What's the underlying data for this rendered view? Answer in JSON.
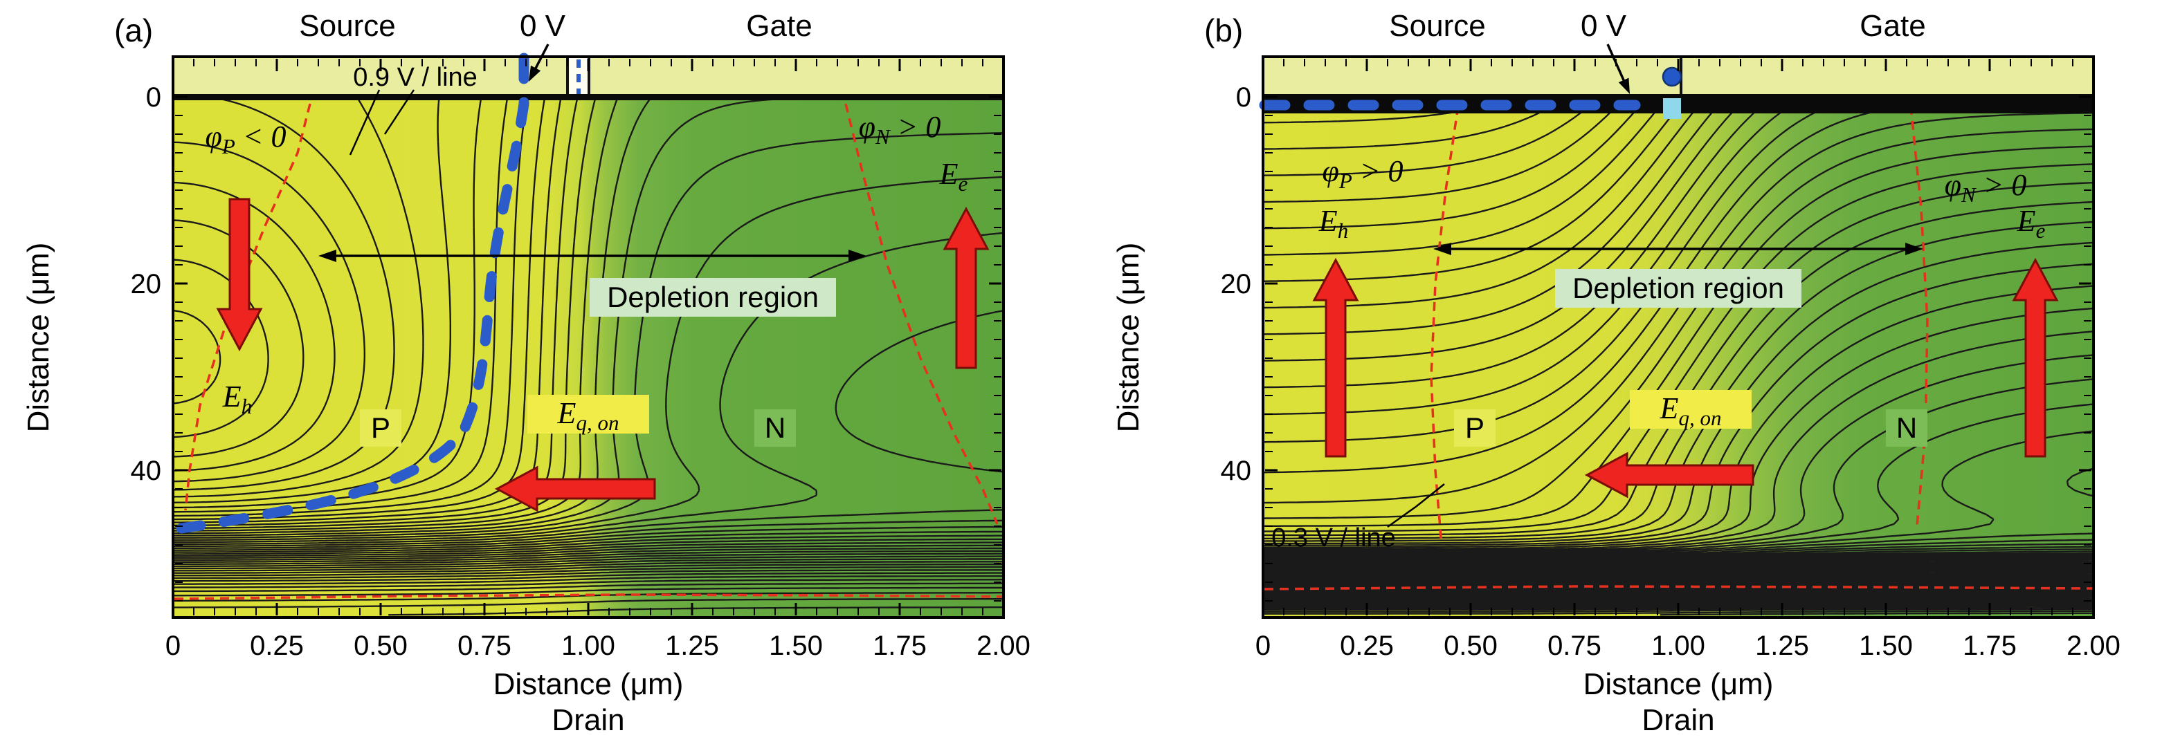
{
  "figure_type": "Semiconductor device 2D electrostatic potential contour figure (two panels)",
  "colors": {
    "p_region_yellow": "#dbe13b",
    "n_region_green": "#5fa53d",
    "contact_strip_yellow": "#e8ed9f",
    "contour_line_black": "#1a1a1a",
    "zero_volt_blue": "#2b5cc9",
    "depletion_boundary_red": "#e8301e",
    "field_arrow_red": "#ee2420",
    "depletion_label_bg": "#cfe9c8",
    "eq_label_bg": "#f2ec49",
    "p_label_bg": "#e6ea55",
    "n_label_bg": "#7cbd58"
  },
  "panels": [
    {
      "letter": "(a)",
      "top": {
        "source": "Source",
        "bias": "0 V",
        "gate": "Gate"
      },
      "contour_note": "0.9 V / line",
      "phi_left": {
        "sym": "φ",
        "sub": "P",
        "rel": " < 0"
      },
      "phi_right": {
        "sym": "φ",
        "sub": "N",
        "rel": " > 0"
      },
      "e_left": {
        "sym": "E",
        "sub": "h"
      },
      "e_right": {
        "sym": "E",
        "sub": "e"
      },
      "e_mid": {
        "sym": "E",
        "sub": "q, on"
      },
      "depletion": "Depletion region",
      "p_region": "P",
      "n_region": "N",
      "x_axis": {
        "title": "Distance (μm)",
        "ticks": [
          "0",
          "0.25",
          "0.50",
          "0.75",
          "1.00",
          "1.25",
          "1.50",
          "1.75",
          "2.00"
        ],
        "bottom_label": "Drain"
      },
      "y_axis": {
        "title": "Distance (μm)",
        "ticks": [
          "0",
          "20",
          "40"
        ]
      }
    },
    {
      "letter": "(b)",
      "top": {
        "source": "Source",
        "bias": "0 V",
        "gate": "Gate"
      },
      "contour_note": "0.3 V / line",
      "phi_left": {
        "sym": "φ",
        "sub": "P",
        "rel": " > 0"
      },
      "phi_right": {
        "sym": "φ",
        "sub": "N",
        "rel": " > 0"
      },
      "e_left": {
        "sym": "E",
        "sub": "h"
      },
      "e_right": {
        "sym": "E",
        "sub": "e"
      },
      "e_mid": {
        "sym": "E",
        "sub": "q, on"
      },
      "depletion": "Depletion region",
      "p_region": "P",
      "n_region": "N",
      "x_axis": {
        "title": "Distance (μm)",
        "ticks": [
          "0",
          "0.25",
          "0.50",
          "0.75",
          "1.00",
          "1.25",
          "1.50",
          "1.75",
          "2.00"
        ],
        "bottom_label": "Drain"
      },
      "y_axis": {
        "title": "Distance (μm)",
        "ticks": [
          "0",
          "20",
          "40"
        ]
      }
    }
  ],
  "chart_data": [
    {
      "type": "heatmap",
      "subtype": "filled 2D potential contour map of vertical P/N device cross-section",
      "panel": "(a)",
      "xlabel": "Distance (μm)",
      "ylabel": "Distance (μm)",
      "xlim": [
        0,
        2.0
      ],
      "ylim": [
        0,
        56
      ],
      "x_ticks": [
        0,
        0.25,
        0.5,
        0.75,
        1.0,
        1.25,
        1.5,
        1.75,
        2.0
      ],
      "y_ticks": [
        0,
        20,
        40
      ],
      "contour_interval_V": 0.9,
      "electrodes": {
        "top_left": "Source (0 V)",
        "top_right": "Gate",
        "bottom": "Drain"
      },
      "regions": [
        {
          "name": "P",
          "fill": "yellow",
          "potential_sign": "phiP < 0",
          "approx_x_range_um": [
            0,
            0.95
          ]
        },
        {
          "name": "N",
          "fill": "green",
          "potential_sign": "phiN > 0",
          "approx_x_range_um": [
            0.95,
            2.0
          ]
        }
      ],
      "overlays": [
        {
          "name": "0 V equipotential",
          "style": "thick blue dashed",
          "path_um": [
            [
              0.84,
              0
            ],
            [
              0.75,
              24
            ],
            [
              0.72,
              35
            ],
            [
              0.45,
              43.5
            ],
            [
              0.02,
              46.5
            ]
          ]
        },
        {
          "name": "depletion boundary left",
          "style": "thin red dashed",
          "path_um": [
            [
              0.33,
              0
            ],
            [
              0.05,
              42
            ]
          ]
        },
        {
          "name": "depletion boundary right",
          "style": "thin red dashed",
          "path_um": [
            [
              1.62,
              0
            ],
            [
              1.98,
              46
            ]
          ]
        },
        {
          "name": "depletion boundary bottom",
          "style": "thin red dashed",
          "depth_um": 53.5
        },
        {
          "name": "Eh hole field arrow",
          "direction": "down",
          "at_um": [
            0.16,
            19
          ]
        },
        {
          "name": "Ee electron field arrow",
          "direction": "up",
          "at_um": [
            1.91,
            20
          ]
        },
        {
          "name": "Eq,on field arrow",
          "direction": "left",
          "at_um": [
            0.97,
            42
          ]
        },
        {
          "name": "Depletion region span",
          "span_um": [
            0.35,
            1.67
          ],
          "depth_um": 17
        }
      ]
    },
    {
      "type": "heatmap",
      "subtype": "filled 2D potential contour map of vertical P/N device cross-section",
      "panel": "(b)",
      "xlabel": "Distance (μm)",
      "ylabel": "Distance (μm)",
      "xlim": [
        0,
        2.0
      ],
      "ylim": [
        0,
        56
      ],
      "x_ticks": [
        0,
        0.25,
        0.5,
        0.75,
        1.0,
        1.25,
        1.5,
        1.75,
        2.0
      ],
      "y_ticks": [
        0,
        20,
        40
      ],
      "contour_interval_V": 0.3,
      "electrodes": {
        "top_left": "Source (0 V)",
        "top_right": "Gate",
        "bottom": "Drain"
      },
      "regions": [
        {
          "name": "P",
          "fill": "yellow",
          "potential_sign": "phiP > 0",
          "approx_x_range_um": [
            0,
            1.0
          ]
        },
        {
          "name": "N",
          "fill": "green",
          "potential_sign": "phiN > 0",
          "approx_x_range_um": [
            1.0,
            2.0
          ]
        }
      ],
      "overlays": [
        {
          "name": "0 V equipotential",
          "style": "thick blue dashed",
          "path_um": [
            [
              0,
              0.8
            ],
            [
              0.9,
              0.8
            ]
          ]
        },
        {
          "name": "depletion boundary left",
          "style": "thin red dashed",
          "path_um": [
            [
              0.47,
              0
            ],
            [
              0.42,
              48
            ]
          ]
        },
        {
          "name": "depletion boundary right",
          "style": "thin red dashed",
          "path_um": [
            [
              1.56,
              0
            ],
            [
              1.58,
              46
            ]
          ]
        },
        {
          "name": "depletion boundary bottom",
          "style": "thin red dashed",
          "depth_um": 52.5
        },
        {
          "name": "Eh hole field arrow",
          "direction": "up",
          "at_um": [
            0.17,
            28
          ]
        },
        {
          "name": "Ee electron field arrow",
          "direction": "up",
          "at_um": [
            1.86,
            28
          ]
        },
        {
          "name": "Eq,on field arrow",
          "direction": "left",
          "at_um": [
            0.98,
            40.5
          ]
        },
        {
          "name": "Depletion region span",
          "span_um": [
            0.41,
            1.59
          ],
          "depth_um": 16
        }
      ]
    }
  ]
}
